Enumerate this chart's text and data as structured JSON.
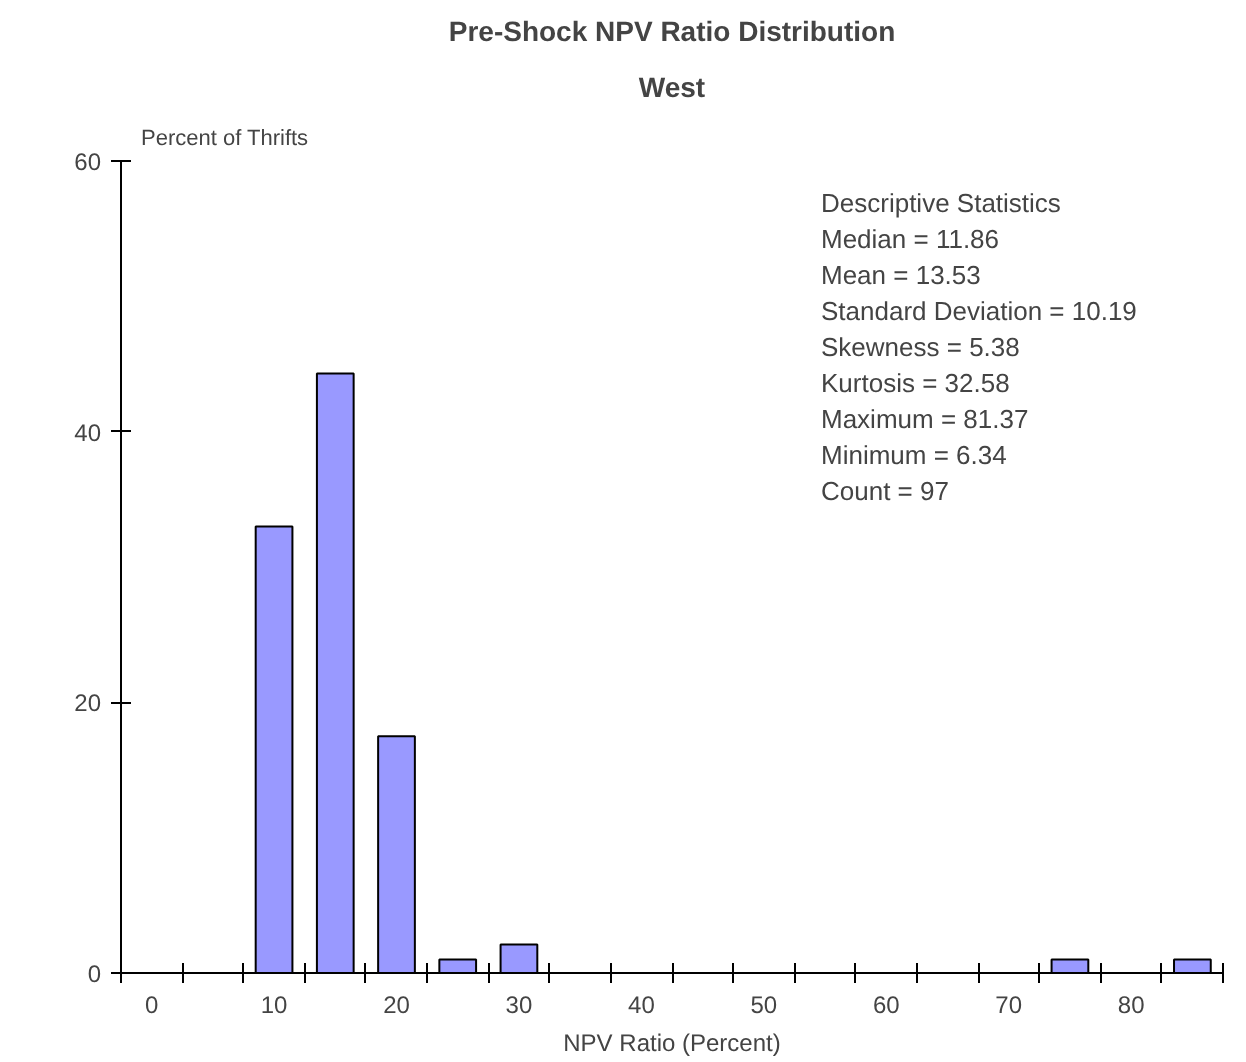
{
  "chart_data": {
    "type": "bar",
    "title": "Pre-Shock NPV Ratio Distribution",
    "subtitle": "West",
    "xlabel": "NPV Ratio (Percent)",
    "ylabel": "Percent of Thrifts",
    "categories": [
      "0",
      null,
      "10",
      null,
      "20",
      null,
      "30",
      null,
      "40",
      null,
      "50",
      null,
      "60",
      null,
      "70",
      null,
      "80",
      null
    ],
    "values": [
      null,
      null,
      33.0,
      44.3,
      17.5,
      1.0,
      2.1,
      null,
      null,
      null,
      null,
      null,
      null,
      null,
      null,
      1.0,
      null,
      1.0
    ],
    "color": "#9999ff",
    "ylim": [
      0,
      60
    ],
    "yticks": [
      0,
      20,
      40,
      60
    ],
    "grid": false,
    "annotations": [
      "Descriptive Statistics",
      "Median = 11.86",
      "Mean = 13.53",
      "Standard Deviation = 10.19",
      "Skewness = 5.38",
      "Kurtosis = 32.58",
      "Maximum = 81.37",
      "Minimum = 6.34",
      "Count = 97"
    ]
  }
}
